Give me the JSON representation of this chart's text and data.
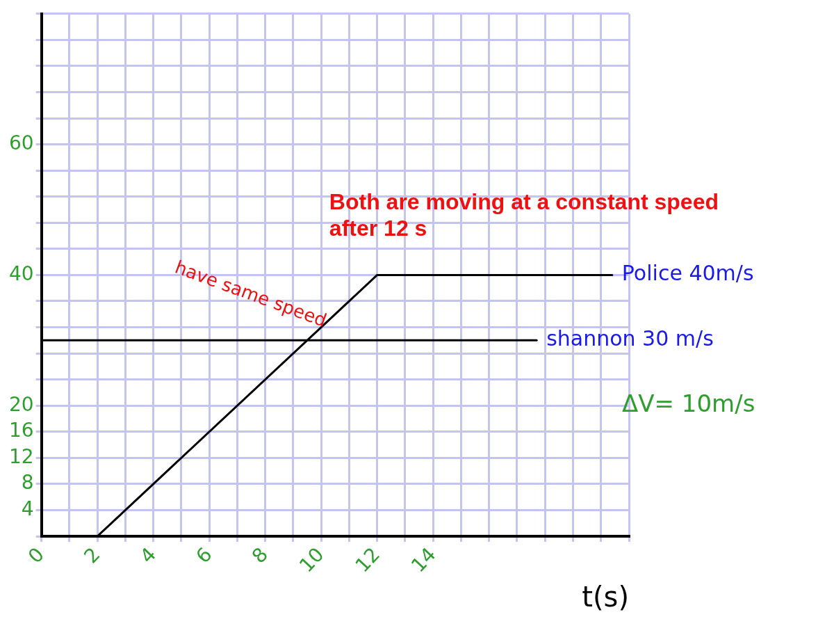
{
  "chart_data": {
    "type": "line",
    "xlabel": "t(s)",
    "xlim": [
      0,
      21
    ],
    "ylim": [
      0,
      80
    ],
    "xticks": [
      0,
      {
        "value": 1,
        "label": null
      },
      2,
      {
        "value": 3,
        "label": null
      },
      4,
      {
        "value": 5,
        "label": null
      },
      6,
      {
        "value": 7,
        "label": null
      },
      8,
      {
        "value": 9,
        "label": null
      },
      10,
      {
        "value": 11,
        "label": null
      },
      12,
      {
        "value": 13,
        "label": null
      },
      14,
      {
        "value": 15,
        "label": null
      },
      {
        "value": 16,
        "label": null
      },
      {
        "value": 17,
        "label": null
      },
      {
        "value": 18,
        "label": null
      },
      {
        "value": 19,
        "label": null
      },
      {
        "value": 20,
        "label": null
      },
      {
        "value": 21,
        "label": null
      }
    ],
    "yticks": [
      {
        "value": 0,
        "label": null
      },
      4,
      8,
      12,
      16,
      20,
      {
        "value": 24,
        "label": null
      },
      {
        "value": 28,
        "label": null
      },
      {
        "value": 32,
        "label": null
      },
      {
        "value": 36,
        "label": null
      },
      40,
      {
        "value": 44,
        "label": null
      },
      {
        "value": 48,
        "label": null
      },
      {
        "value": 52,
        "label": null
      },
      {
        "value": 56,
        "label": null
      },
      60,
      {
        "value": 64,
        "label": null
      },
      {
        "value": 68,
        "label": null
      },
      {
        "value": 72,
        "label": null
      },
      {
        "value": 76,
        "label": null
      },
      {
        "value": 80,
        "label": null
      }
    ],
    "grid": true,
    "legend": false,
    "marker": "none",
    "line_style": "solid",
    "series": [
      {
        "name": "Police 40m/s",
        "color": "#000000",
        "x": [
          2,
          12,
          20.4
        ],
        "values": [
          0,
          40,
          40
        ]
      },
      {
        "name": "shannon 30 m/s",
        "color": "#000000",
        "x": [
          0,
          17.7
        ],
        "values": [
          30,
          30
        ]
      }
    ],
    "annotations": [
      "Both are moving at a constant speed after 12 s",
      "ΔV= 10m/s",
      {
        "text": "have same speed",
        "x": 9.7,
        "y": 30
      }
    ]
  }
}
